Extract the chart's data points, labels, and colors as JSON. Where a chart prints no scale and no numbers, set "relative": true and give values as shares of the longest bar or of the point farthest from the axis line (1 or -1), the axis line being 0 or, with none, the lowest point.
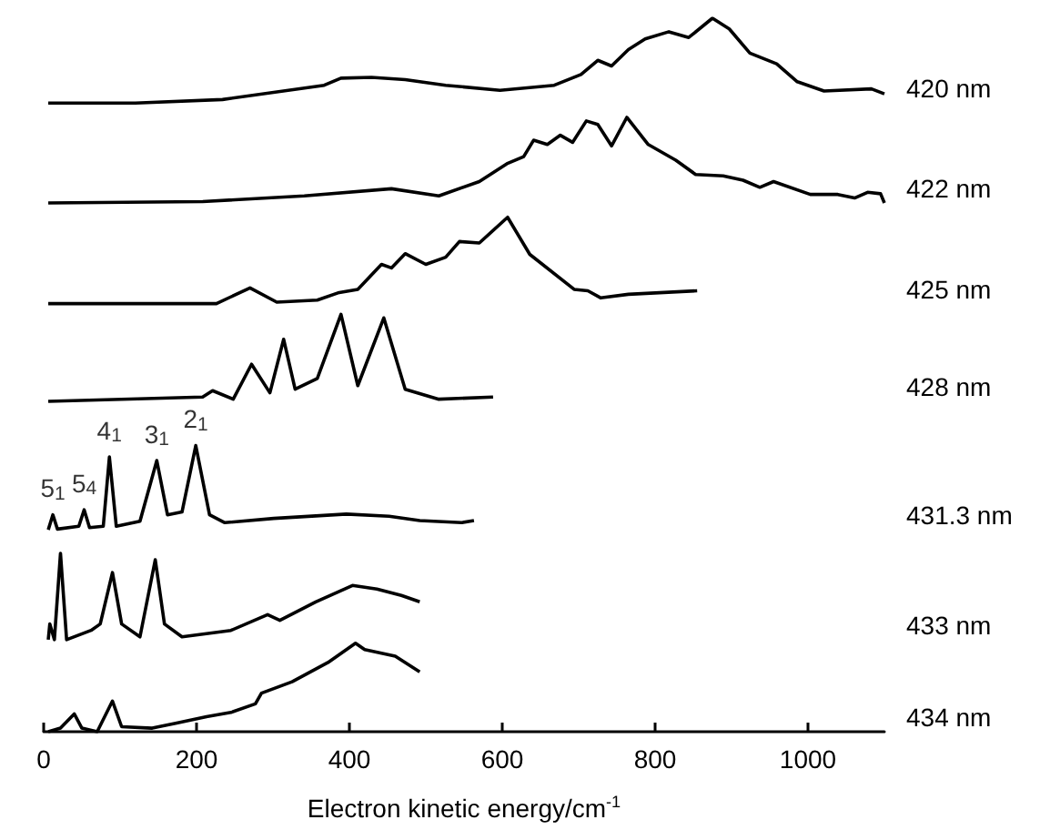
{
  "chart_data": {
    "type": "line",
    "relative": true,
    "xlabel": "Electron kinetic energy/cm$^{-1}$",
    "xlim": [
      0,
      1100
    ],
    "xticks": [
      0,
      200,
      400,
      600,
      800,
      1000
    ],
    "series": [
      {
        "name": "420 nm",
        "color": "#000000",
        "x": [
          6,
          120,
          234,
          367,
          389,
          429,
          473,
          526,
          597,
          668,
          703,
          725,
          743,
          765,
          787,
          818,
          844,
          875,
          897,
          924,
          959,
          986,
          1021,
          1083,
          1100
        ],
        "values": [
          0.881,
          0.881,
          0.886,
          0.906,
          0.916,
          0.917,
          0.914,
          0.906,
          0.899,
          0.906,
          0.921,
          0.941,
          0.933,
          0.956,
          0.971,
          0.981,
          0.973,
          1.0,
          0.985,
          0.951,
          0.936,
          0.911,
          0.898,
          0.901,
          0.894
        ]
      },
      {
        "name": "422 nm",
        "color": "#000000",
        "x": [
          6,
          208,
          341,
          455,
          517,
          570,
          606,
          628,
          641,
          659,
          676,
          692,
          710,
          725,
          743,
          763,
          791,
          827,
          853,
          889,
          915,
          937,
          955,
          1003,
          1039,
          1061,
          1078,
          1095,
          1100
        ],
        "values": [
          0.741,
          0.743,
          0.751,
          0.761,
          0.751,
          0.771,
          0.796,
          0.806,
          0.829,
          0.823,
          0.836,
          0.826,
          0.856,
          0.851,
          0.821,
          0.861,
          0.823,
          0.801,
          0.781,
          0.779,
          0.773,
          0.763,
          0.771,
          0.753,
          0.753,
          0.748,
          0.756,
          0.754,
          0.741
        ]
      },
      {
        "name": "425 nm",
        "color": "#000000",
        "x": [
          6,
          226,
          270,
          305,
          358,
          385,
          411,
          442,
          455,
          473,
          500,
          526,
          544,
          570,
          607,
          636,
          694,
          712,
          729,
          765,
          855
        ],
        "values": [
          0.6,
          0.6,
          0.622,
          0.602,
          0.605,
          0.615,
          0.62,
          0.655,
          0.65,
          0.67,
          0.655,
          0.665,
          0.687,
          0.685,
          0.721,
          0.669,
          0.62,
          0.618,
          0.608,
          0.613,
          0.618
        ]
      },
      {
        "name": "428 nm",
        "color": "#000000",
        "x": [
          6,
          208,
          221,
          248,
          272,
          296,
          314,
          329,
          358,
          389,
          411,
          445,
          473,
          517,
          588
        ],
        "values": [
          0.463,
          0.469,
          0.478,
          0.466,
          0.515,
          0.475,
          0.55,
          0.48,
          0.495,
          0.585,
          0.485,
          0.58,
          0.48,
          0.466,
          0.469
        ]
      },
      {
        "name": "431.3 nm",
        "color": "#000000",
        "x": [
          6,
          12,
          18,
          46,
          53,
          60,
          78,
          86,
          95,
          126,
          148,
          162,
          181,
          199,
          217,
          237,
          301,
          396,
          452,
          492,
          547,
          563
        ],
        "values": [
          0.283,
          0.304,
          0.284,
          0.288,
          0.311,
          0.286,
          0.288,
          0.385,
          0.288,
          0.295,
          0.38,
          0.304,
          0.308,
          0.401,
          0.304,
          0.293,
          0.299,
          0.305,
          0.302,
          0.296,
          0.293,
          0.296
        ]
      },
      {
        "name": "433 nm",
        "color": "#000000",
        "x": [
          6,
          8,
          14,
          22,
          30,
          62,
          74,
          90,
          102,
          126,
          146,
          158,
          181,
          245,
          293,
          309,
          356,
          404,
          436,
          468,
          492
        ],
        "values": [
          0.129,
          0.151,
          0.129,
          0.25,
          0.129,
          0.142,
          0.151,
          0.223,
          0.151,
          0.133,
          0.241,
          0.151,
          0.133,
          0.142,
          0.164,
          0.156,
          0.182,
          0.205,
          0.2,
          0.191,
          0.182
        ]
      },
      {
        "name": "434 nm",
        "color": "#000000",
        "x": [
          6,
          22,
          40,
          50,
          70,
          90,
          102,
          142,
          174,
          213,
          245,
          277,
          285,
          325,
          372,
          408,
          420,
          460,
          492
        ],
        "values": [
          0.0,
          0.005,
          0.025,
          0.005,
          0.0,
          0.043,
          0.007,
          0.005,
          0.012,
          0.021,
          0.027,
          0.039,
          0.054,
          0.07,
          0.097,
          0.124,
          0.115,
          0.106,
          0.084
        ]
      }
    ],
    "annotations": [
      {
        "text": "5$_{1}$",
        "x": 12,
        "y": 0.304
      },
      {
        "text": "5$_{4}$",
        "x": 53,
        "y": 0.311
      },
      {
        "text": "4$_{1}$",
        "x": 86,
        "y": 0.385
      },
      {
        "text": "3$_{1}$",
        "x": 148,
        "y": 0.38
      },
      {
        "text": "2$_{1}$",
        "x": 199,
        "y": 0.401
      }
    ]
  }
}
